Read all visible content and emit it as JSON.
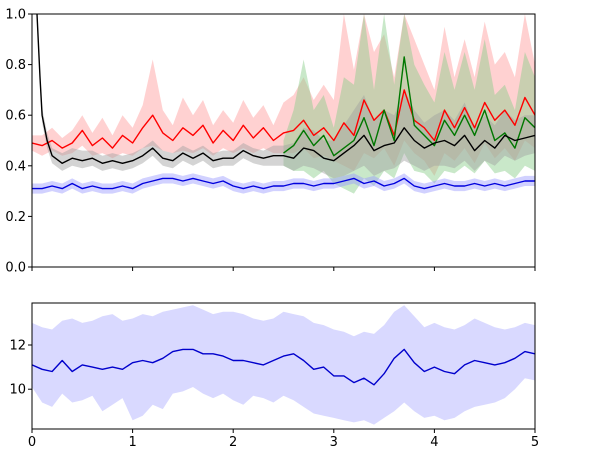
{
  "chart_data": [
    {
      "type": "line",
      "title": "",
      "xlabel": "",
      "ylabel": "",
      "xlim": [
        0,
        5
      ],
      "ylim": [
        0.0,
        1.0
      ],
      "yticks": [
        0.0,
        0.2,
        0.4,
        0.6,
        0.8,
        1.0
      ],
      "ytick_labels": [
        "0.0",
        "0.2",
        "0.4",
        "0.6",
        "0.8",
        "1.0"
      ],
      "xticks": [
        0,
        1,
        2,
        3,
        4,
        5
      ],
      "xtick_labels": [],
      "grid": false,
      "legend": "none",
      "series": [
        {
          "color": "#ff0000",
          "band_color": "#ff9999",
          "x": [
            0,
            0.1,
            0.2,
            0.3,
            0.4,
            0.5,
            0.6,
            0.7,
            0.8,
            0.9,
            1.0,
            1.1,
            1.2,
            1.3,
            1.4,
            1.5,
            1.6,
            1.7,
            1.8,
            1.9,
            2.0,
            2.1,
            2.2,
            2.3,
            2.4,
            2.5,
            2.6,
            2.7,
            2.8,
            2.9,
            3.0,
            3.1,
            3.2,
            3.3,
            3.4,
            3.5,
            3.6,
            3.7,
            3.8,
            3.9,
            4.0,
            4.1,
            4.2,
            4.3,
            4.4,
            4.5,
            4.6,
            4.7,
            4.8,
            4.9,
            5.0
          ],
          "y": [
            0.49,
            0.48,
            0.5,
            0.47,
            0.49,
            0.54,
            0.48,
            0.51,
            0.47,
            0.52,
            0.49,
            0.55,
            0.6,
            0.53,
            0.5,
            0.55,
            0.52,
            0.56,
            0.49,
            0.54,
            0.5,
            0.56,
            0.51,
            0.55,
            0.5,
            0.53,
            0.54,
            0.58,
            0.52,
            0.55,
            0.5,
            0.57,
            0.52,
            0.66,
            0.58,
            0.62,
            0.52,
            0.7,
            0.58,
            0.55,
            0.5,
            0.62,
            0.55,
            0.63,
            0.55,
            0.65,
            0.58,
            0.62,
            0.56,
            0.67,
            0.6
          ],
          "upper": [
            0.52,
            0.52,
            0.55,
            0.51,
            0.54,
            0.6,
            0.53,
            0.59,
            0.52,
            0.6,
            0.55,
            0.64,
            0.82,
            0.62,
            0.56,
            0.67,
            0.6,
            0.66,
            0.56,
            0.62,
            0.57,
            0.66,
            0.59,
            0.64,
            0.56,
            0.65,
            0.68,
            0.75,
            0.66,
            0.72,
            0.66,
            1.0,
            0.78,
            1.0,
            0.85,
            0.92,
            0.75,
            1.0,
            0.9,
            0.8,
            0.7,
            0.95,
            0.75,
            0.9,
            0.75,
            0.97,
            0.8,
            0.85,
            0.75,
            1.0,
            0.8
          ],
          "lower": [
            0.46,
            0.44,
            0.46,
            0.44,
            0.45,
            0.48,
            0.44,
            0.45,
            0.43,
            0.45,
            0.44,
            0.47,
            0.48,
            0.46,
            0.45,
            0.46,
            0.45,
            0.47,
            0.44,
            0.47,
            0.45,
            0.47,
            0.45,
            0.47,
            0.45,
            0.45,
            0.45,
            0.47,
            0.43,
            0.44,
            0.42,
            0.4,
            0.38,
            0.45,
            0.43,
            0.47,
            0.4,
            0.5,
            0.45,
            0.42,
            0.36,
            0.45,
            0.42,
            0.47,
            0.41,
            0.49,
            0.43,
            0.47,
            0.42,
            0.5,
            0.47
          ]
        },
        {
          "color": "#007700",
          "band_color": "#88cc88",
          "x": [
            2.5,
            2.6,
            2.7,
            2.8,
            2.9,
            3.0,
            3.1,
            3.2,
            3.3,
            3.4,
            3.5,
            3.6,
            3.7,
            3.8,
            3.9,
            4.0,
            4.1,
            4.2,
            4.3,
            4.4,
            4.5,
            4.6,
            4.7,
            4.8,
            4.9,
            5.0
          ],
          "y": [
            0.45,
            0.48,
            0.54,
            0.48,
            0.52,
            0.44,
            0.47,
            0.5,
            0.59,
            0.48,
            0.62,
            0.5,
            0.83,
            0.56,
            0.52,
            0.48,
            0.58,
            0.52,
            0.6,
            0.52,
            0.62,
            0.5,
            0.53,
            0.47,
            0.59,
            0.55
          ],
          "upper": [
            0.5,
            0.62,
            0.82,
            0.62,
            0.68,
            0.55,
            0.75,
            0.72,
            1.0,
            0.7,
            1.0,
            0.72,
            1.0,
            0.8,
            0.72,
            0.65,
            0.85,
            0.7,
            0.85,
            0.7,
            0.9,
            0.68,
            0.72,
            0.62,
            0.85,
            0.75
          ],
          "lower": [
            0.4,
            0.38,
            0.38,
            0.35,
            0.38,
            0.33,
            0.31,
            0.29,
            0.35,
            0.32,
            0.38,
            0.35,
            0.45,
            0.38,
            0.37,
            0.33,
            0.38,
            0.37,
            0.4,
            0.37,
            0.42,
            0.37,
            0.38,
            0.35,
            0.4,
            0.38
          ]
        },
        {
          "color": "#000000",
          "band_color": "#a0a0a0",
          "x": [
            0.05,
            0.08,
            0.1,
            0.15,
            0.2,
            0.3,
            0.4,
            0.5,
            0.6,
            0.7,
            0.8,
            0.9,
            1.0,
            1.1,
            1.2,
            1.3,
            1.4,
            1.5,
            1.6,
            1.7,
            1.8,
            1.9,
            2.0,
            2.1,
            2.2,
            2.3,
            2.4,
            2.5,
            2.6,
            2.7,
            2.8,
            2.9,
            3.0,
            3.1,
            3.2,
            3.3,
            3.4,
            3.5,
            3.6,
            3.7,
            3.8,
            3.9,
            4.0,
            4.1,
            4.2,
            4.3,
            4.4,
            4.5,
            4.6,
            4.7,
            4.8,
            4.9,
            5.0
          ],
          "y": [
            1.0,
            0.75,
            0.6,
            0.5,
            0.44,
            0.41,
            0.43,
            0.42,
            0.43,
            0.41,
            0.42,
            0.41,
            0.42,
            0.44,
            0.47,
            0.43,
            0.42,
            0.45,
            0.43,
            0.45,
            0.42,
            0.43,
            0.43,
            0.46,
            0.44,
            0.43,
            0.44,
            0.44,
            0.43,
            0.47,
            0.46,
            0.43,
            0.42,
            0.45,
            0.48,
            0.52,
            0.46,
            0.48,
            0.49,
            0.55,
            0.5,
            0.47,
            0.49,
            0.5,
            0.48,
            0.52,
            0.46,
            0.5,
            0.47,
            0.52,
            0.5,
            0.51,
            0.52
          ],
          "upper": [
            1.0,
            0.78,
            0.63,
            0.53,
            0.47,
            0.45,
            0.47,
            0.46,
            0.46,
            0.44,
            0.45,
            0.44,
            0.45,
            0.47,
            0.5,
            0.46,
            0.45,
            0.48,
            0.46,
            0.48,
            0.45,
            0.46,
            0.46,
            0.49,
            0.47,
            0.46,
            0.48,
            0.48,
            0.49,
            0.55,
            0.54,
            0.5,
            0.5,
            0.56,
            0.62,
            0.68,
            0.58,
            0.62,
            0.6,
            0.7,
            0.62,
            0.57,
            0.6,
            0.62,
            0.58,
            0.65,
            0.55,
            0.6,
            0.56,
            0.62,
            0.58,
            0.6,
            0.6
          ],
          "lower": [
            0.97,
            0.72,
            0.57,
            0.47,
            0.41,
            0.38,
            0.4,
            0.39,
            0.4,
            0.38,
            0.39,
            0.38,
            0.39,
            0.41,
            0.44,
            0.4,
            0.39,
            0.42,
            0.4,
            0.42,
            0.39,
            0.4,
            0.4,
            0.43,
            0.41,
            0.4,
            0.4,
            0.4,
            0.38,
            0.4,
            0.39,
            0.37,
            0.35,
            0.36,
            0.38,
            0.4,
            0.36,
            0.38,
            0.39,
            0.42,
            0.4,
            0.38,
            0.4,
            0.4,
            0.39,
            0.42,
            0.38,
            0.42,
            0.4,
            0.44,
            0.42,
            0.44,
            0.45
          ]
        },
        {
          "color": "#0000dd",
          "band_color": "#9999ff",
          "x": [
            0,
            0.1,
            0.2,
            0.3,
            0.4,
            0.5,
            0.6,
            0.7,
            0.8,
            0.9,
            1.0,
            1.1,
            1.2,
            1.3,
            1.4,
            1.5,
            1.6,
            1.7,
            1.8,
            1.9,
            2.0,
            2.1,
            2.2,
            2.3,
            2.4,
            2.5,
            2.6,
            2.7,
            2.8,
            2.9,
            3.0,
            3.1,
            3.2,
            3.3,
            3.4,
            3.5,
            3.6,
            3.7,
            3.8,
            3.9,
            4.0,
            4.1,
            4.2,
            4.3,
            4.4,
            4.5,
            4.6,
            4.7,
            4.8,
            4.9,
            5.0
          ],
          "y": [
            0.31,
            0.31,
            0.32,
            0.31,
            0.33,
            0.31,
            0.32,
            0.31,
            0.31,
            0.32,
            0.31,
            0.33,
            0.34,
            0.35,
            0.35,
            0.34,
            0.35,
            0.34,
            0.33,
            0.34,
            0.32,
            0.31,
            0.32,
            0.31,
            0.32,
            0.32,
            0.33,
            0.33,
            0.32,
            0.33,
            0.33,
            0.34,
            0.35,
            0.33,
            0.34,
            0.32,
            0.33,
            0.35,
            0.32,
            0.31,
            0.32,
            0.33,
            0.32,
            0.32,
            0.33,
            0.32,
            0.33,
            0.32,
            0.33,
            0.34,
            0.34
          ],
          "upper": [
            0.33,
            0.33,
            0.34,
            0.33,
            0.35,
            0.33,
            0.34,
            0.33,
            0.33,
            0.34,
            0.33,
            0.35,
            0.36,
            0.37,
            0.37,
            0.36,
            0.37,
            0.36,
            0.35,
            0.36,
            0.34,
            0.33,
            0.34,
            0.33,
            0.34,
            0.34,
            0.35,
            0.35,
            0.34,
            0.35,
            0.35,
            0.36,
            0.37,
            0.35,
            0.36,
            0.34,
            0.35,
            0.37,
            0.34,
            0.33,
            0.34,
            0.35,
            0.34,
            0.34,
            0.35,
            0.34,
            0.35,
            0.34,
            0.35,
            0.36,
            0.36
          ],
          "lower": [
            0.29,
            0.29,
            0.3,
            0.29,
            0.31,
            0.29,
            0.3,
            0.29,
            0.29,
            0.3,
            0.29,
            0.31,
            0.32,
            0.33,
            0.33,
            0.32,
            0.33,
            0.32,
            0.31,
            0.32,
            0.3,
            0.29,
            0.3,
            0.29,
            0.3,
            0.3,
            0.31,
            0.31,
            0.3,
            0.31,
            0.31,
            0.32,
            0.33,
            0.31,
            0.32,
            0.3,
            0.31,
            0.33,
            0.3,
            0.29,
            0.3,
            0.31,
            0.3,
            0.3,
            0.31,
            0.3,
            0.31,
            0.3,
            0.31,
            0.32,
            0.32
          ]
        }
      ]
    },
    {
      "type": "line",
      "title": "",
      "xlabel": "",
      "ylabel": "",
      "xlim": [
        0,
        5
      ],
      "ylim": [
        8.2,
        13.9
      ],
      "yticks": [
        10,
        12
      ],
      "ytick_labels": [
        "10",
        "12"
      ],
      "xticks": [
        0,
        1,
        2,
        3,
        4,
        5
      ],
      "xtick_labels": [
        "0",
        "1",
        "2",
        "3",
        "4",
        "5"
      ],
      "grid": false,
      "legend": "none",
      "series": [
        {
          "color": "#0000cc",
          "band_color": "#aaaaff",
          "x": [
            0,
            0.1,
            0.2,
            0.3,
            0.4,
            0.5,
            0.6,
            0.7,
            0.8,
            0.9,
            1.0,
            1.1,
            1.2,
            1.3,
            1.4,
            1.5,
            1.6,
            1.7,
            1.8,
            1.9,
            2.0,
            2.1,
            2.2,
            2.3,
            2.4,
            2.5,
            2.6,
            2.7,
            2.8,
            2.9,
            3.0,
            3.1,
            3.2,
            3.3,
            3.4,
            3.5,
            3.6,
            3.7,
            3.8,
            3.9,
            4.0,
            4.1,
            4.2,
            4.3,
            4.4,
            4.5,
            4.6,
            4.7,
            4.8,
            4.9,
            5.0
          ],
          "y": [
            11.1,
            10.9,
            10.8,
            11.3,
            10.8,
            11.1,
            11.0,
            10.9,
            11.0,
            10.9,
            11.2,
            11.3,
            11.2,
            11.4,
            11.7,
            11.8,
            11.8,
            11.6,
            11.6,
            11.5,
            11.3,
            11.3,
            11.2,
            11.1,
            11.3,
            11.5,
            11.6,
            11.3,
            10.9,
            11.0,
            10.6,
            10.6,
            10.3,
            10.5,
            10.2,
            10.7,
            11.4,
            11.8,
            11.2,
            10.8,
            11.0,
            10.8,
            10.7,
            11.1,
            11.3,
            11.2,
            11.1,
            11.2,
            11.4,
            11.7,
            11.6
          ],
          "upper": [
            13.0,
            12.8,
            12.7,
            13.1,
            13.2,
            13.0,
            13.1,
            13.3,
            13.4,
            13.1,
            13.2,
            13.4,
            13.3,
            13.5,
            13.6,
            13.7,
            13.8,
            13.6,
            13.4,
            13.5,
            13.5,
            13.4,
            13.2,
            13.1,
            13.2,
            13.5,
            13.4,
            13.3,
            13.0,
            12.9,
            12.7,
            12.6,
            12.4,
            12.6,
            12.5,
            12.9,
            13.5,
            13.8,
            13.3,
            12.8,
            13.0,
            12.8,
            12.7,
            12.9,
            13.2,
            13.0,
            12.8,
            12.7,
            12.8,
            13.0,
            12.9
          ],
          "lower": [
            10.1,
            9.4,
            9.2,
            9.8,
            9.4,
            9.5,
            9.7,
            9.0,
            9.3,
            9.6,
            8.6,
            8.8,
            9.3,
            9.1,
            9.8,
            9.9,
            10.1,
            9.8,
            9.6,
            9.8,
            9.5,
            9.3,
            9.7,
            9.6,
            9.4,
            9.7,
            9.5,
            9.2,
            8.9,
            8.8,
            8.7,
            8.6,
            8.5,
            8.6,
            8.4,
            8.7,
            9.0,
            9.4,
            9.0,
            8.7,
            8.8,
            8.6,
            8.7,
            9.0,
            9.2,
            9.3,
            9.4,
            9.6,
            10.0,
            10.5,
            10.4
          ]
        }
      ]
    }
  ]
}
